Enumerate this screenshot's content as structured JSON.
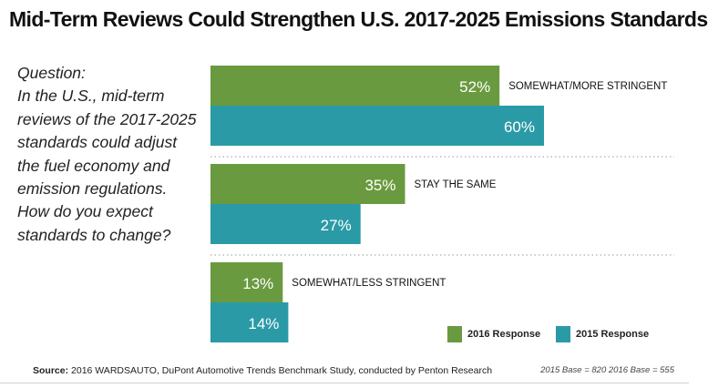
{
  "title": "Mid-Term Reviews Could Strengthen U.S. 2017-2025 Emissions Standards",
  "question": {
    "label": "Question:",
    "lines": [
      "In the U.S., mid-term",
      "reviews of the 2017-2025",
      "standards could adjust",
      "the fuel economy and",
      "emission regulations.",
      "How do you expect",
      "standards to change?"
    ]
  },
  "legend": [
    {
      "label": "2016 Response",
      "color": "#6a9a3f"
    },
    {
      "label": "2015 Response",
      "color": "#2a9aa6"
    }
  ],
  "source": {
    "prefix": "Source:",
    "text": "2016 WARDSAUTO, DuPont Automotive Trends Benchmark Study, conducted by Penton Research"
  },
  "base_note": "2015 Base = 820  2016 Base = 555",
  "chart_data": {
    "type": "bar",
    "orientation": "horizontal",
    "title": "Mid-Term Reviews Could Strengthen U.S. 2017-2025 Emissions Standards",
    "categories": [
      "SOMEWHAT/MORE STRINGENT",
      "STAY THE SAME",
      "SOMEWHAT/LESS STRINGENT"
    ],
    "series": [
      {
        "name": "2016 Response",
        "color": "#6a9a3f",
        "values": [
          52,
          35,
          13
        ],
        "labels": [
          "52%",
          "35%",
          "13%"
        ]
      },
      {
        "name": "2015 Response",
        "color": "#2a9aa6",
        "values": [
          60,
          27,
          14
        ],
        "labels": [
          "60%",
          "27%",
          "14%"
        ]
      }
    ],
    "unit": "%",
    "xlim": [
      0,
      100
    ],
    "xlabel": "",
    "ylabel": ""
  }
}
